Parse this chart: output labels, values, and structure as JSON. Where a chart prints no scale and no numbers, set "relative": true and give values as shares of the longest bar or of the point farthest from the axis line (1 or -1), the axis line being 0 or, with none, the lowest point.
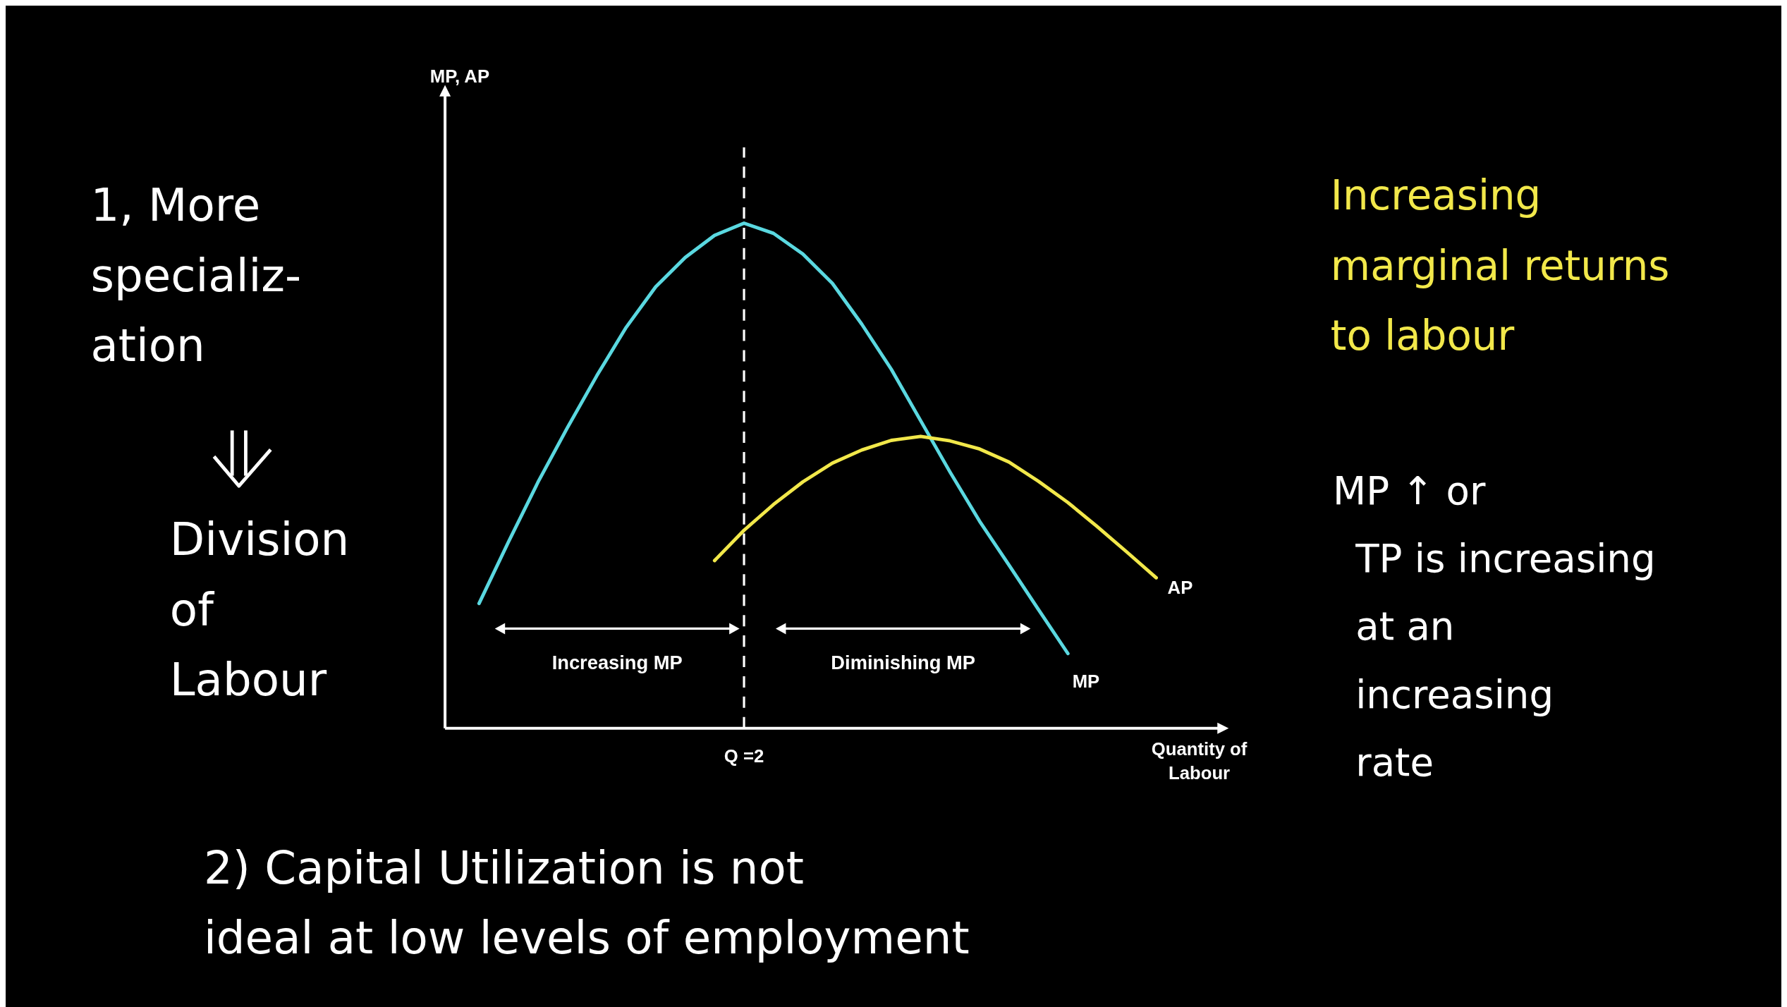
{
  "chart_data": {
    "type": "line",
    "relative": true,
    "xlabel": "Quantity of\nLabour",
    "grid": false,
    "legend": false,
    "marker": "none",
    "line_style": "solid",
    "categories": [
      null,
      null,
      null,
      null,
      null,
      null,
      null,
      null,
      null,
      null,
      null,
      null,
      null,
      null,
      null,
      null,
      null,
      null,
      null,
      null,
      null,
      null,
      null,
      null
    ],
    "series": [
      {
        "name": "MP",
        "color": "#5ad8e0",
        "values": [
          0.247,
          0.369,
          0.487,
          0.595,
          0.698,
          0.794,
          0.874,
          0.932,
          0.976,
          1.0,
          0.98,
          0.939,
          0.881,
          0.8,
          0.711,
          0.609,
          0.507,
          0.41,
          0.323,
          0.235,
          0.148,
          null,
          null,
          null
        ]
      },
      {
        "name": "AP",
        "color": "#f2e84a",
        "values": [
          null,
          null,
          null,
          null,
          null,
          null,
          null,
          null,
          0.332,
          0.392,
          0.443,
          0.488,
          0.525,
          0.551,
          0.57,
          0.578,
          0.569,
          0.553,
          0.527,
          0.489,
          0.447,
          0.399,
          0.349,
          0.298
        ]
      }
    ],
    "annotations": [
      "Increasing MP",
      "Diminishing MP",
      "1, More\nspecializ-\nation",
      "Division\nof\nLabour",
      "2)  Capital Utilization is not\nideal at low levels of employment",
      "Increasing\nmarginal returns\nto labour",
      "MP ↑  or\nTP is increasing\nat an\nincreasing\nrate",
      "Q =2",
      "MP, AP"
    ]
  }
}
